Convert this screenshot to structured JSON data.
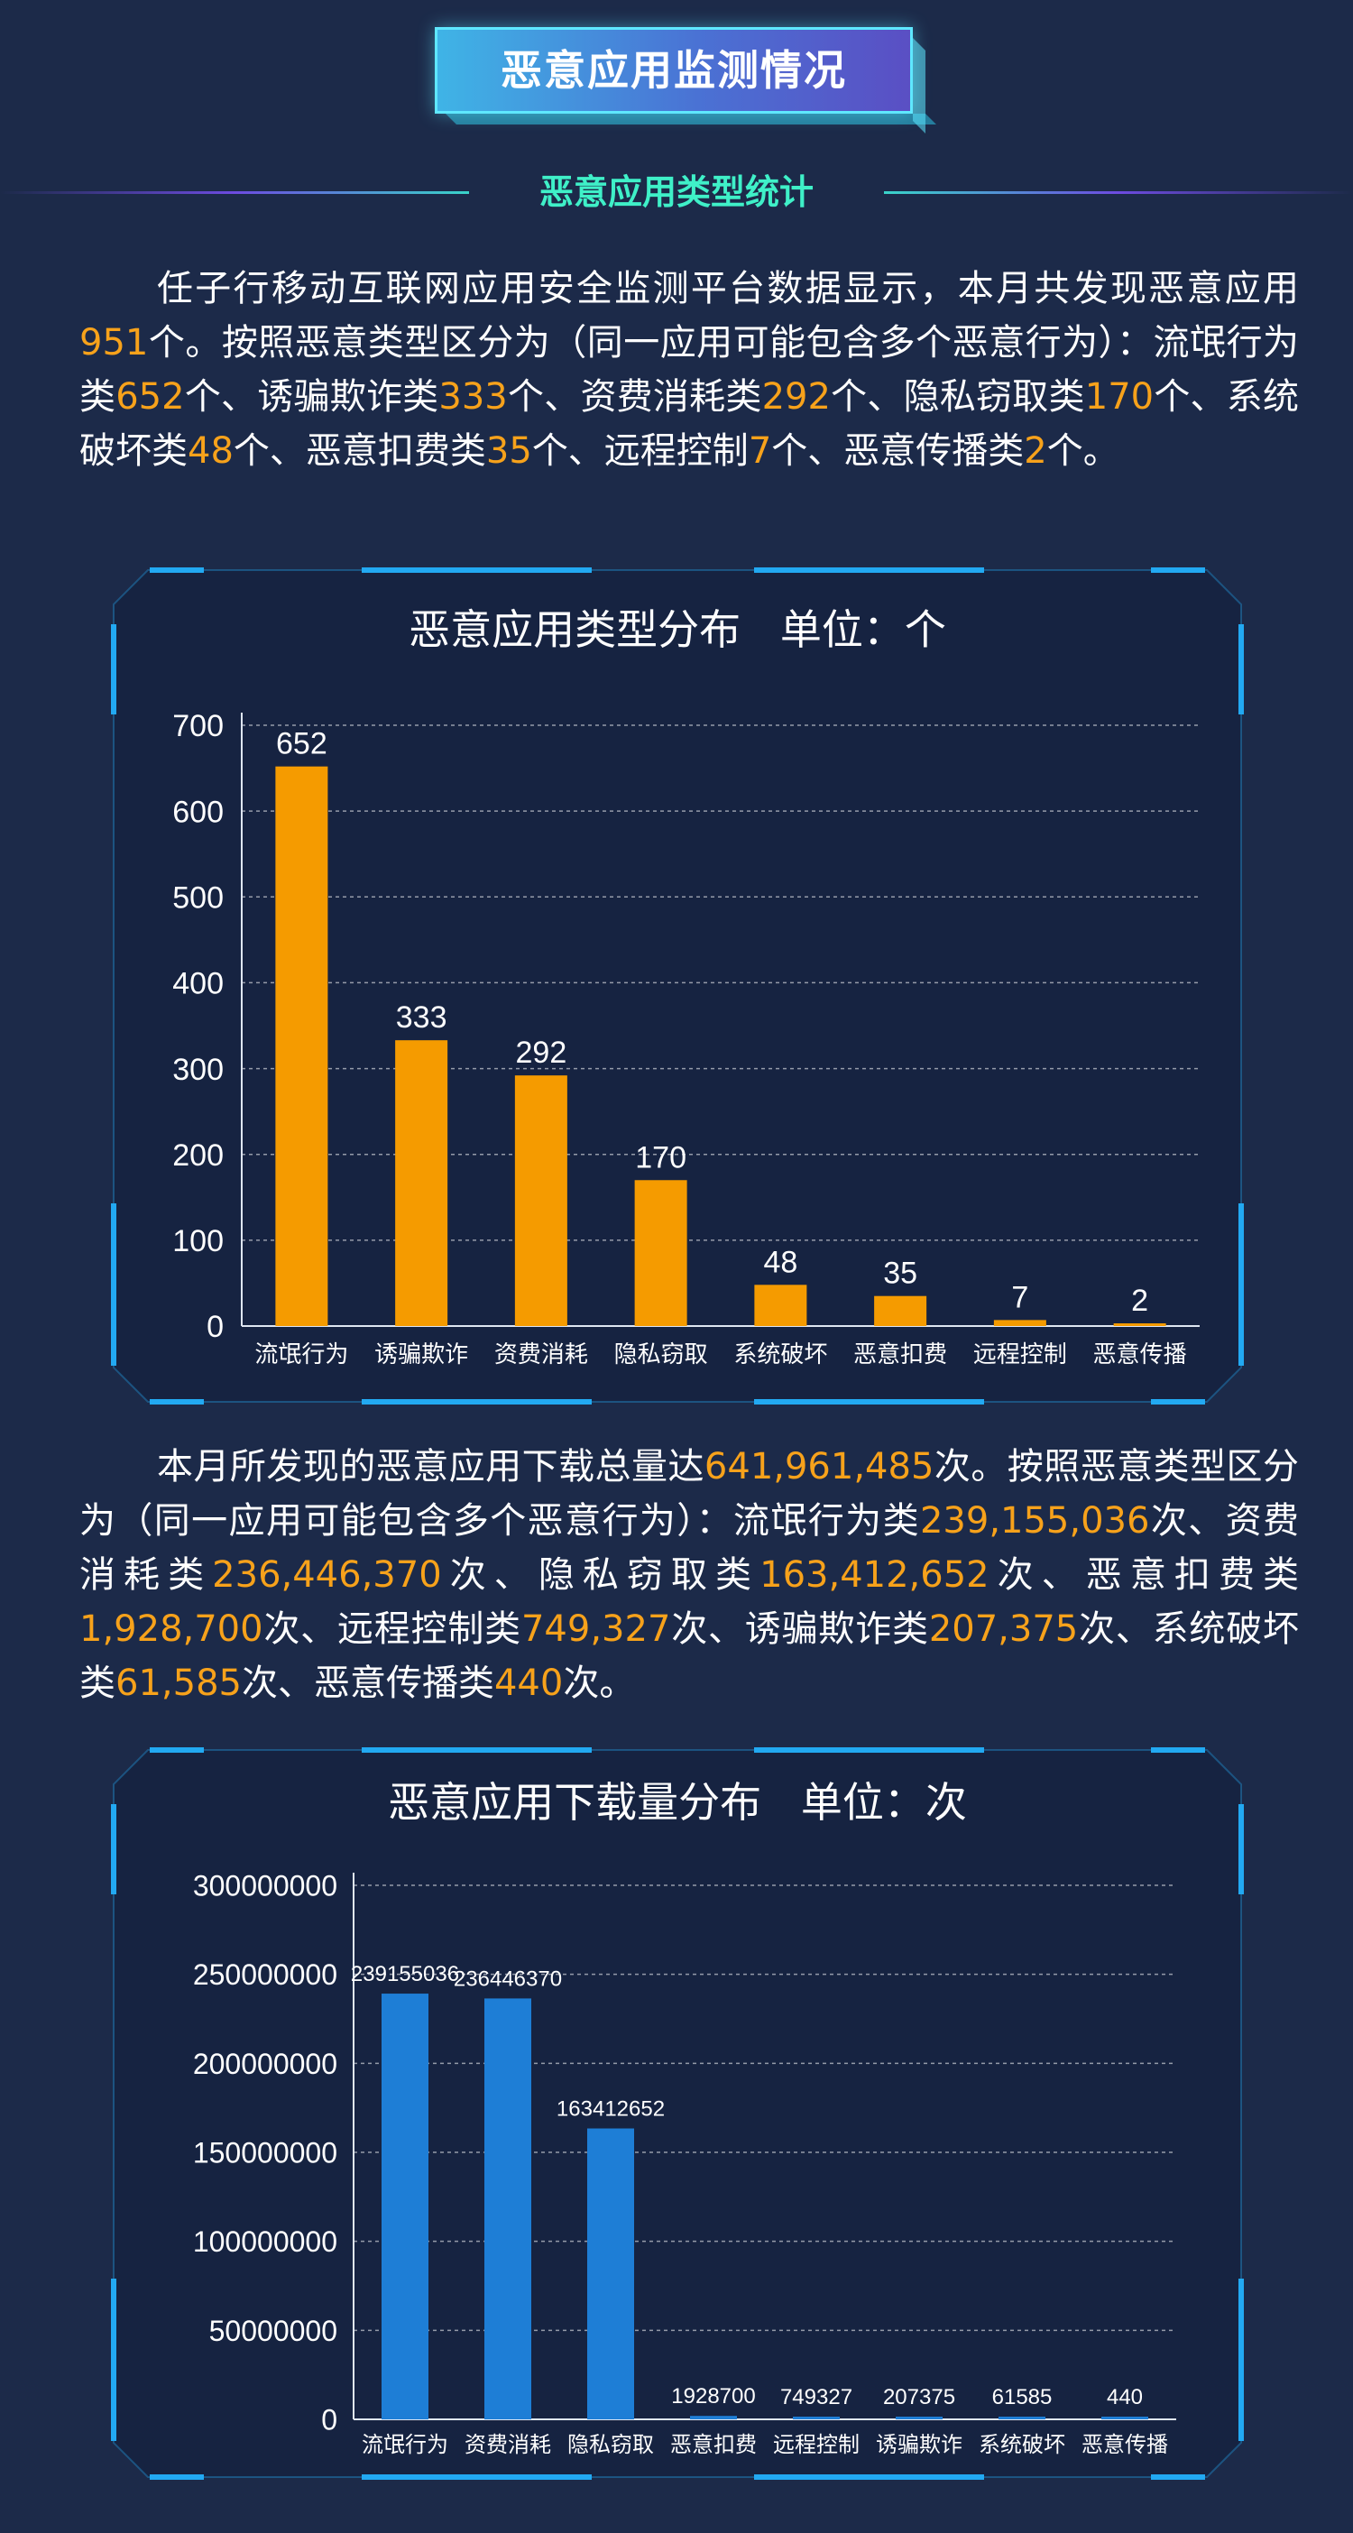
{
  "header": {
    "main_title": "恶意应用监测情况",
    "section_title": "恶意应用类型统计"
  },
  "paragraph1": [
    {
      "t": "任子行移动互联网应用安全监测平台数据显示，本月共发现恶意应用"
    },
    {
      "t": "951",
      "hl": true
    },
    {
      "t": "个。按照恶意类型区分为（同一应用可能包含多个恶意行为）：流氓行为类"
    },
    {
      "t": "652",
      "hl": true
    },
    {
      "t": "个、诱骗欺诈类"
    },
    {
      "t": "333",
      "hl": true
    },
    {
      "t": "个、资费消耗类"
    },
    {
      "t": "292",
      "hl": true
    },
    {
      "t": "个、隐私窃取类"
    },
    {
      "t": "170",
      "hl": true
    },
    {
      "t": "个、系统破坏类"
    },
    {
      "t": "48",
      "hl": true
    },
    {
      "t": "个、恶意扣费类"
    },
    {
      "t": "35",
      "hl": true
    },
    {
      "t": "个、远程控制"
    },
    {
      "t": "7",
      "hl": true
    },
    {
      "t": "个、恶意传播类"
    },
    {
      "t": "2",
      "hl": true
    },
    {
      "t": "个。"
    }
  ],
  "paragraph2": [
    {
      "t": "本月所发现的恶意应用下载总量达"
    },
    {
      "t": "641,961,485",
      "hl": true
    },
    {
      "t": "次。按照恶意类型区分为（同一应用可能包含多个恶意行为）：流氓行为类"
    },
    {
      "t": "239,155,036",
      "hl": true
    },
    {
      "t": "次、资费消耗类"
    },
    {
      "t": "236,446,370",
      "hl": true
    },
    {
      "t": "次、隐私窃取类"
    },
    {
      "t": "163,412,652",
      "hl": true
    },
    {
      "t": "次、恶意扣费类"
    },
    {
      "t": "1,928,700",
      "hl": true
    },
    {
      "t": "次、远程控制类"
    },
    {
      "t": "749,327",
      "hl": true
    },
    {
      "t": "次、诱骗欺诈类"
    },
    {
      "t": "207,375",
      "hl": true
    },
    {
      "t": "次、系统破坏类"
    },
    {
      "t": "61,585",
      "hl": true
    },
    {
      "t": "次、恶意传播类"
    },
    {
      "t": "440",
      "hl": true
    },
    {
      "t": "次。"
    }
  ],
  "chart1_title": "恶意应用类型分布   单位：个",
  "chart2_title": "恶意应用下载量分布   单位：次",
  "colors": {
    "background": "#1c2a49",
    "highlight": "#f7a21b",
    "bar_chart1": "#f59b00",
    "bar_chart2": "#1e7ed6",
    "frame_accent": "#22a9f2",
    "section_title": "#3ff0c8"
  },
  "chart_data": [
    {
      "type": "bar",
      "title": "恶意应用类型分布   单位：个",
      "categories": [
        "流氓行为",
        "诱骗欺诈",
        "资费消耗",
        "隐私窃取",
        "系统破坏",
        "恶意扣费",
        "远程控制",
        "恶意传播"
      ],
      "values": [
        652,
        333,
        292,
        170,
        48,
        35,
        7,
        2
      ],
      "ylim": [
        0,
        700
      ],
      "yticks": [
        0,
        100,
        200,
        300,
        400,
        500,
        600,
        700
      ],
      "grid": true,
      "data_labels": true
    },
    {
      "type": "bar",
      "title": "恶意应用下载量分布   单位：次",
      "categories": [
        "流氓行为",
        "资费消耗",
        "隐私窃取",
        "恶意扣费",
        "远程控制",
        "诱骗欺诈",
        "系统破坏",
        "恶意传播"
      ],
      "values": [
        239155036,
        236446370,
        163412652,
        1928700,
        749327,
        207375,
        61585,
        440
      ],
      "ylim": [
        0,
        300000000
      ],
      "yticks": [
        0,
        50000000,
        100000000,
        150000000,
        200000000,
        250000000,
        300000000
      ],
      "grid": true,
      "data_labels": true
    }
  ]
}
